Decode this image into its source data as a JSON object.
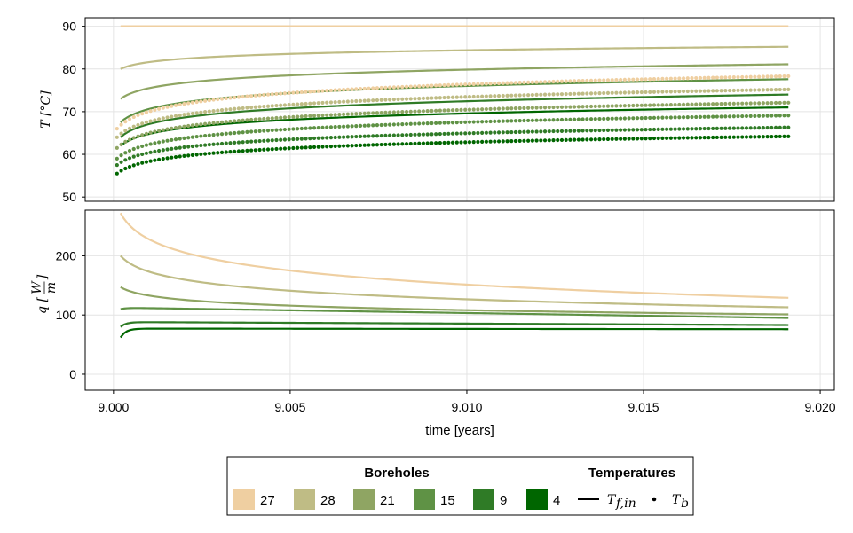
{
  "chart_data": [
    {
      "type": "line",
      "panel": "top",
      "ylabel_math": "T [°C]",
      "ylim": [
        49,
        92
      ],
      "yticks": [
        "50",
        "60",
        "70",
        "80",
        "90"
      ],
      "xlim": [
        8.9992,
        9.0204
      ],
      "grid": true,
      "series": [
        {
          "borehole": "27",
          "kind": "Tf_in",
          "x_start": 9.0002,
          "x_end": 9.0191,
          "start": 90.0,
          "end": 90.0,
          "shape": "flat"
        },
        {
          "borehole": "28",
          "kind": "Tf_in",
          "x_start": 9.0002,
          "x_end": 9.0191,
          "start": 80.0,
          "end": 85.2,
          "shape": "log"
        },
        {
          "borehole": "21",
          "kind": "Tf_in",
          "x_start": 9.0002,
          "x_end": 9.0191,
          "start": 73.0,
          "end": 81.1,
          "shape": "log"
        },
        {
          "borehole": "15",
          "kind": "Tf_in",
          "x_start": 9.0002,
          "x_end": 9.0191,
          "start": 67.5,
          "end": 77.6,
          "shape": "log"
        },
        {
          "borehole": "9",
          "kind": "Tf_in",
          "x_start": 9.0002,
          "x_end": 9.0191,
          "start": 64.0,
          "end": 74.0,
          "shape": "log"
        },
        {
          "borehole": "4",
          "kind": "Tf_in",
          "x_start": 9.0002,
          "x_end": 9.0191,
          "start": 62.0,
          "end": 71.0,
          "shape": "log"
        },
        {
          "borehole": "27",
          "kind": "Tb",
          "x_start": 9.0001,
          "x_end": 9.0191,
          "start": 66.0,
          "end": 78.3,
          "shape": "log"
        },
        {
          "borehole": "28",
          "kind": "Tb",
          "x_start": 9.0001,
          "x_end": 9.0191,
          "start": 64.0,
          "end": 75.2,
          "shape": "log"
        },
        {
          "borehole": "21",
          "kind": "Tb",
          "x_start": 9.0001,
          "x_end": 9.0191,
          "start": 61.5,
          "end": 72.1,
          "shape": "log"
        },
        {
          "borehole": "15",
          "kind": "Tb",
          "x_start": 9.0001,
          "x_end": 9.0191,
          "start": 59.0,
          "end": 69.1,
          "shape": "log"
        },
        {
          "borehole": "9",
          "kind": "Tb",
          "x_start": 9.0001,
          "x_end": 9.0191,
          "start": 57.5,
          "end": 66.3,
          "shape": "log"
        },
        {
          "borehole": "4",
          "kind": "Tb",
          "x_start": 9.0001,
          "x_end": 9.0191,
          "start": 55.5,
          "end": 64.2,
          "shape": "log"
        }
      ]
    },
    {
      "type": "line",
      "panel": "bottom",
      "ylabel_math": "q [W/m]",
      "ylim": [
        -27,
        277
      ],
      "yticks": [
        "0",
        "100",
        "200"
      ],
      "xlim": [
        8.9992,
        9.0204
      ],
      "xticks": [
        "9.000",
        "9.005",
        "9.010",
        "9.015",
        "9.020"
      ],
      "xlabel": "time [years]",
      "grid": true,
      "series": [
        {
          "borehole": "27",
          "x_start": 9.0002,
          "x_end": 9.0191,
          "start": 272,
          "end": 129,
          "shape": "decay"
        },
        {
          "borehole": "28",
          "x_start": 9.0002,
          "x_end": 9.0191,
          "start": 200,
          "end": 113,
          "shape": "decay"
        },
        {
          "borehole": "21",
          "x_start": 9.0002,
          "x_end": 9.0191,
          "start": 147,
          "end": 101,
          "shape": "decay"
        },
        {
          "borehole": "15",
          "x_start": 9.0002,
          "x_end": 9.0191,
          "start": 110,
          "end": 95,
          "peak": 112,
          "shape": "hump"
        },
        {
          "borehole": "9",
          "x_start": 9.0002,
          "x_end": 9.0191,
          "start": 80,
          "end": 83,
          "peak": 88,
          "shape": "hump"
        },
        {
          "borehole": "4",
          "x_start": 9.0002,
          "x_end": 9.0191,
          "start": 62,
          "end": 76,
          "peak": 77,
          "shape": "hump"
        }
      ]
    }
  ],
  "colors": {
    "27": "#efcfa1",
    "28": "#bfbc85",
    "21": "#8fa563",
    "15": "#5f9245",
    "9": "#2f7b26",
    "4": "#006600"
  },
  "legend": {
    "boreholes_title": "Boreholes",
    "boreholes": [
      "27",
      "28",
      "21",
      "15",
      "9",
      "4"
    ],
    "temperatures_title": "Temperatures",
    "temperature_items": [
      {
        "marker": "line",
        "label_main": "T",
        "label_sub": "f,in"
      },
      {
        "marker": "dot",
        "label_main": "T",
        "label_sub": "b"
      }
    ]
  }
}
